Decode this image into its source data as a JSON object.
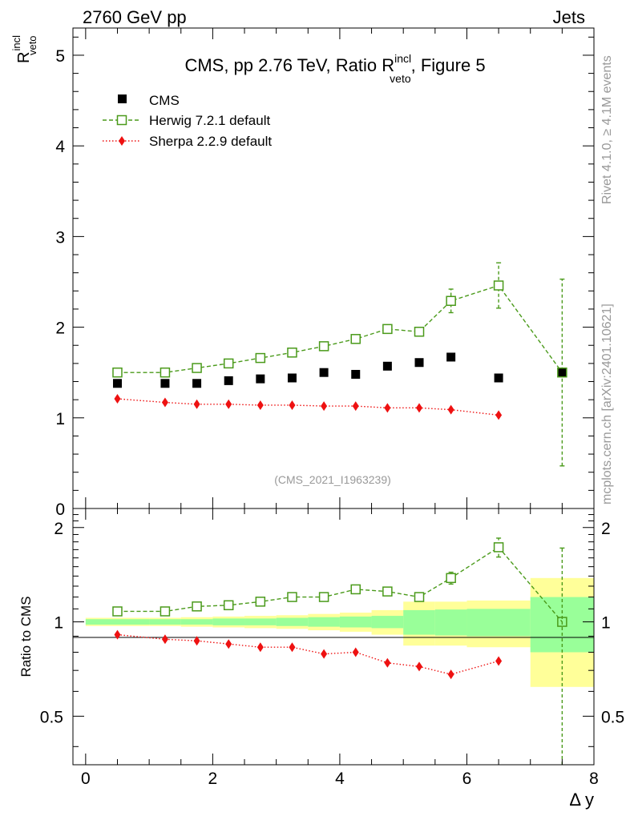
{
  "header": {
    "left": "2760 GeV pp",
    "right": "Jets"
  },
  "side_labels": {
    "rivet": "Rivet 4.1.0, ≥ 4.1M events",
    "mcplots": "mcplots.cern.ch [arXiv:2401.10621]"
  },
  "colors": {
    "cms": "#000000",
    "herwig": "#4a9a1a",
    "sherpa": "#ee1111",
    "band_inner": "#99ff99",
    "band_outer": "#ffff99",
    "watermark": "#999999"
  },
  "chart_data": [
    {
      "type": "scatter",
      "title": "CMS, pp 2.76 TeV, Ratio R",
      "title_sup": "incl",
      "title_sub": "veto",
      "title_suffix": ", Figure 5",
      "ylabel": "R",
      "ylabel_sup": "incl",
      "ylabel_sub": "veto",
      "watermark": "(CMS_2021_I1963239)",
      "xlim": [
        -0.2,
        8
      ],
      "ylim": [
        0,
        5.3
      ],
      "yticks": [
        "0",
        "1",
        "2",
        "3",
        "4",
        "5"
      ],
      "legend": [
        "CMS",
        "Herwig 7.2.1 default",
        "Sherpa 2.2.9 default"
      ],
      "legend_placement": "top-left",
      "series": [
        {
          "name": "CMS",
          "x": [
            0.5,
            1.25,
            1.75,
            2.25,
            2.75,
            3.25,
            3.75,
            4.25,
            4.75,
            5.25,
            5.75,
            6.5,
            7.5
          ],
          "y": [
            1.38,
            1.38,
            1.38,
            1.41,
            1.43,
            1.44,
            1.5,
            1.48,
            1.57,
            1.61,
            1.67,
            1.44,
            1.5
          ]
        },
        {
          "name": "Herwig 7.2.1 default",
          "x": [
            0.5,
            1.25,
            1.75,
            2.25,
            2.75,
            3.25,
            3.75,
            4.25,
            4.75,
            5.25,
            5.75,
            6.5,
            7.5
          ],
          "y": [
            1.5,
            1.5,
            1.55,
            1.6,
            1.66,
            1.72,
            1.79,
            1.87,
            1.98,
            1.95,
            2.29,
            2.46,
            1.5
          ],
          "yerr": [
            0,
            0,
            0,
            0,
            0,
            0,
            0,
            0,
            0,
            0,
            0.13,
            0.25,
            1.03
          ]
        },
        {
          "name": "Sherpa 2.2.9 default",
          "x": [
            0.5,
            1.25,
            1.75,
            2.25,
            2.75,
            3.25,
            3.75,
            4.25,
            4.75,
            5.25,
            5.75,
            6.5
          ],
          "y": [
            1.21,
            1.17,
            1.15,
            1.15,
            1.14,
            1.14,
            1.13,
            1.13,
            1.11,
            1.11,
            1.09,
            1.03
          ]
        }
      ]
    },
    {
      "type": "scatter",
      "ylabel": "Ratio to CMS",
      "xlabel": "Δ y",
      "xlim": [
        -0.2,
        8
      ],
      "ylim": [
        0.35,
        2.3
      ],
      "yscale": "log",
      "xticks": [
        "0",
        "2",
        "4",
        "6",
        "8"
      ],
      "yticks": [
        "0.5",
        "1",
        "2"
      ],
      "bands": {
        "edges": [
          0,
          1,
          1.5,
          2,
          2.5,
          3,
          3.5,
          4,
          4.5,
          5,
          5.5,
          6,
          7,
          8
        ],
        "inner": [
          0.02,
          0.02,
          0.02,
          0.025,
          0.025,
          0.03,
          0.035,
          0.04,
          0.045,
          0.09,
          0.095,
          0.1,
          0.2
        ],
        "outer": [
          0.03,
          0.03,
          0.035,
          0.04,
          0.045,
          0.05,
          0.06,
          0.07,
          0.09,
          0.16,
          0.16,
          0.17,
          0.38
        ]
      },
      "series": [
        {
          "name": "Herwig 7.2.1 default",
          "x": [
            0.5,
            1.25,
            1.75,
            2.25,
            2.75,
            3.25,
            3.75,
            4.25,
            4.75,
            5.25,
            5.75,
            6.5,
            7.5
          ],
          "y": [
            1.08,
            1.08,
            1.12,
            1.13,
            1.16,
            1.2,
            1.2,
            1.27,
            1.25,
            1.2,
            1.38,
            1.73,
            1.0
          ],
          "yerr": [
            0,
            0,
            0,
            0,
            0,
            0,
            0,
            0,
            0,
            0,
            0.06,
            0.12,
            0.72
          ]
        },
        {
          "name": "Sherpa 2.2.9 default",
          "x": [
            0.5,
            1.25,
            1.75,
            2.25,
            2.75,
            3.25,
            3.75,
            4.25,
            4.75,
            5.25,
            5.75,
            6.5
          ],
          "y": [
            0.91,
            0.88,
            0.87,
            0.85,
            0.83,
            0.83,
            0.79,
            0.8,
            0.74,
            0.72,
            0.68,
            0.75
          ]
        }
      ]
    }
  ]
}
